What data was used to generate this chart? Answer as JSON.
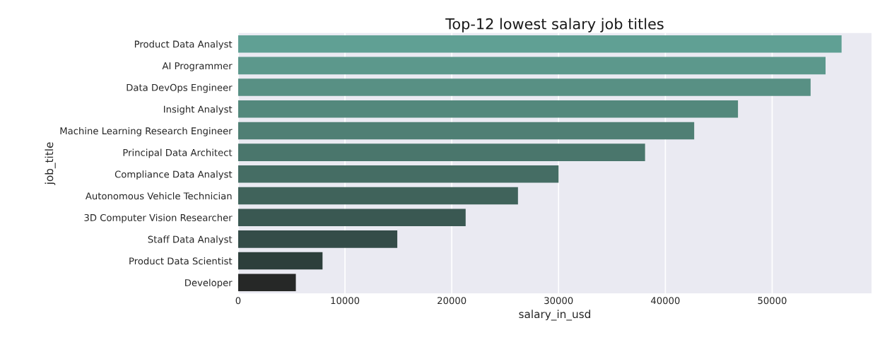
{
  "chart_data": {
    "type": "bar",
    "orientation": "horizontal",
    "title": "Top-12 lowest salary job titles",
    "xlabel": "salary_in_usd",
    "ylabel": "job_title",
    "categories": [
      "Product Data Analyst",
      "AI Programmer",
      "Data DevOps Engineer",
      "Insight Analyst",
      "Machine Learning Research Engineer",
      "Principal Data Architect",
      "Compliance Data Analyst",
      "Autonomous Vehicle Technician",
      "3D Computer Vision Researcher",
      "Staff Data Analyst",
      "Product Data Scientist",
      "Developer"
    ],
    "values": [
      56500,
      55000,
      53600,
      46800,
      42700,
      38100,
      30000,
      26200,
      21300,
      14900,
      7900,
      5400
    ],
    "colors": [
      "#60a094",
      "#5c988c",
      "#589084",
      "#53887c",
      "#4f7f74",
      "#4a766c",
      "#456d64",
      "#40635b",
      "#3a5852",
      "#344c48",
      "#2d3f3b",
      "#262827"
    ],
    "xlim": [
      0,
      59300
    ],
    "xticks": [
      0,
      10000,
      20000,
      30000,
      40000,
      50000
    ],
    "grid": "x"
  }
}
